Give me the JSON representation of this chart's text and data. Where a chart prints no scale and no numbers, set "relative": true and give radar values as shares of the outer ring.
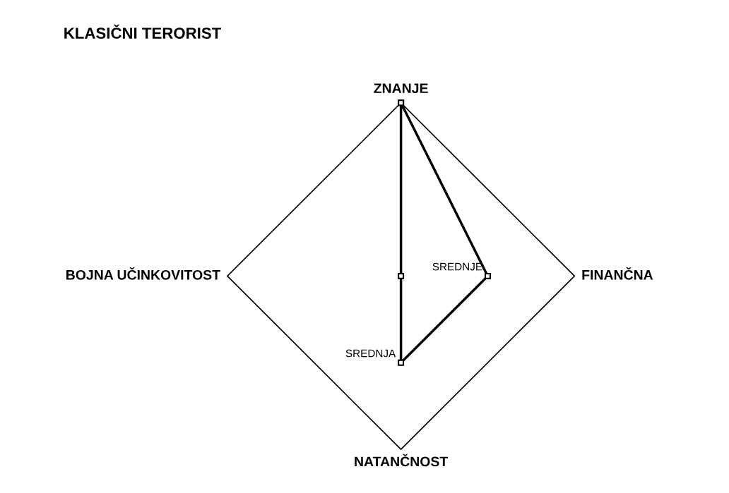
{
  "chart_data": {
    "type": "radar",
    "title": "KLASIČNI TERORIST",
    "categories": [
      "ZNANJE",
      "FINANČNA",
      "NATANČNOST",
      "BOJNA UČINKOVITOST"
    ],
    "series": [
      {
        "color": "#000000",
        "values": [
          1,
          0.5,
          0.5,
          0
        ]
      }
    ],
    "relative": true,
    "grid": true,
    "marker": "square",
    "annotations": [
      {
        "text": "SREDNJE",
        "x": "FINANČNA"
      },
      {
        "text": "SREDNJA",
        "x": "NATANČNOST"
      }
    ]
  }
}
